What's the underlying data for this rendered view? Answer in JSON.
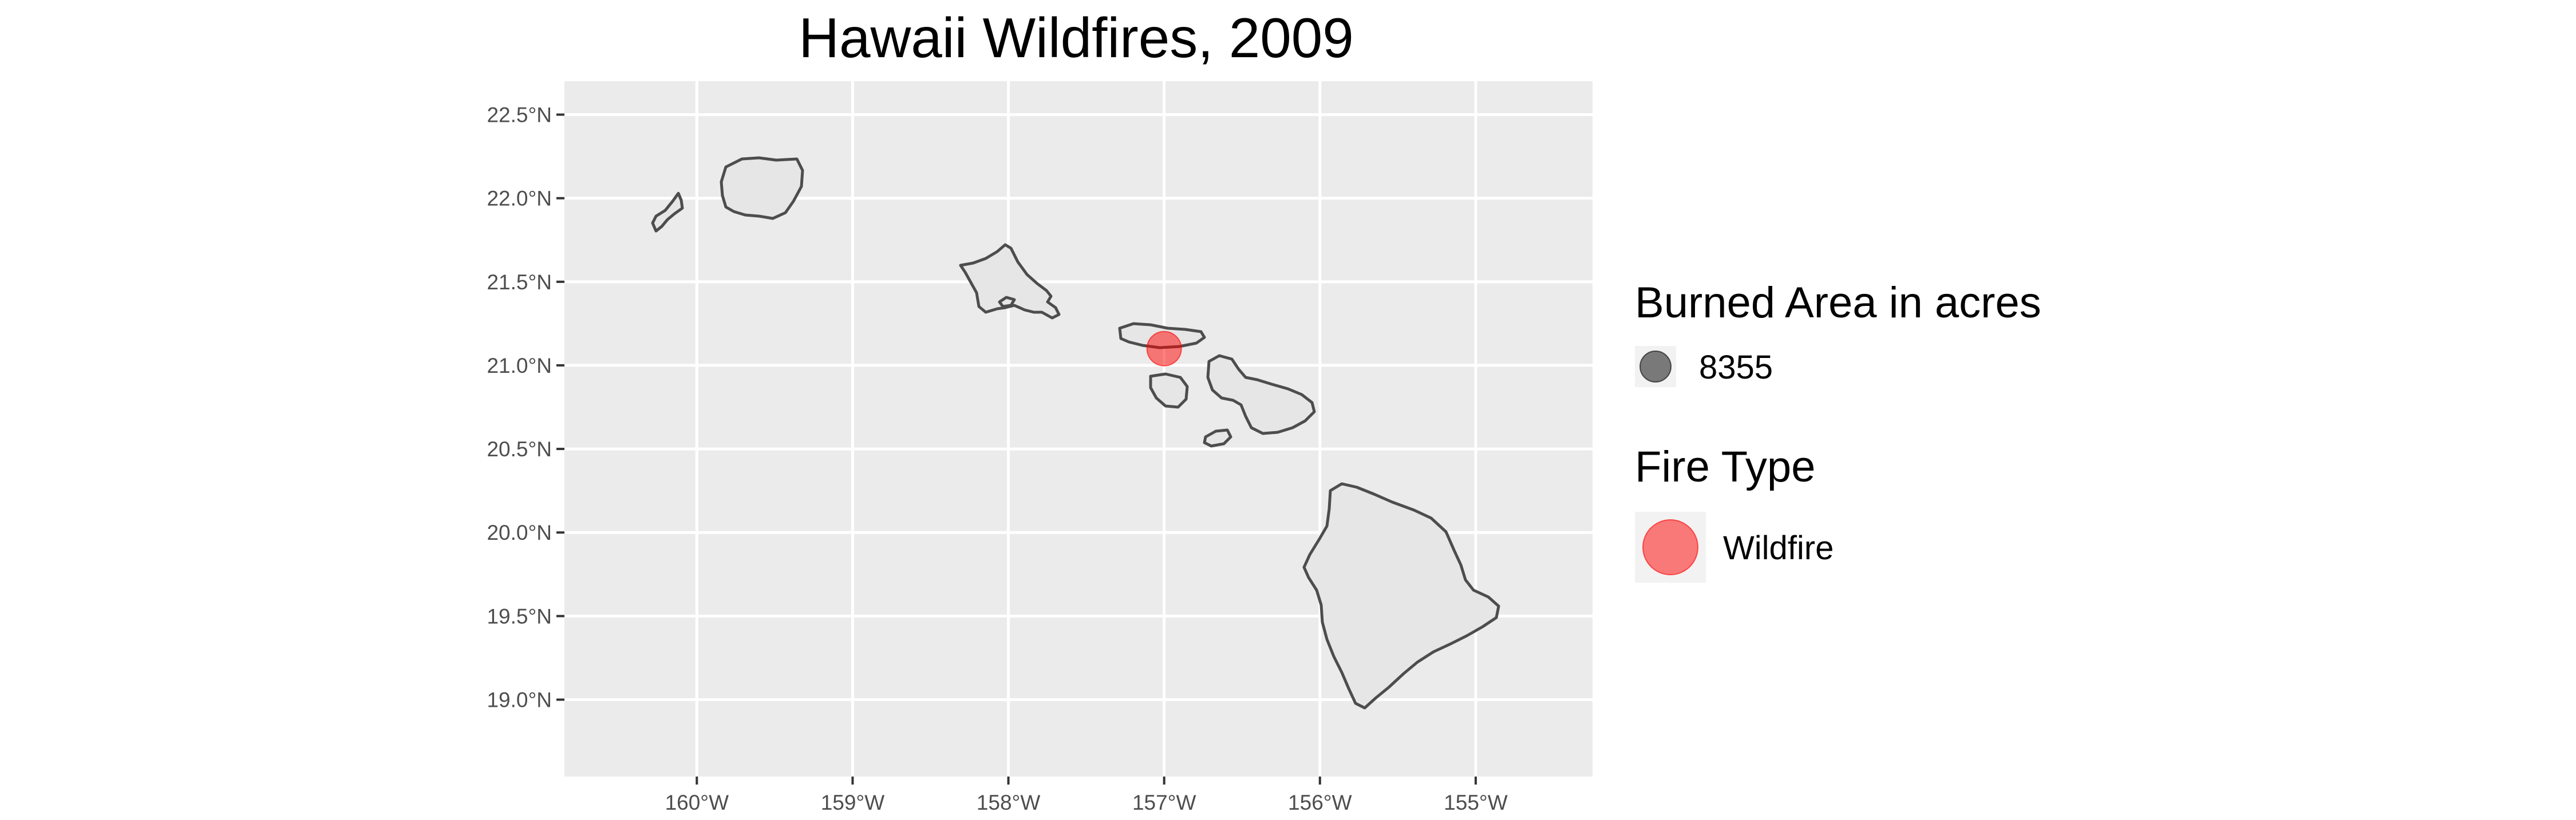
{
  "title": "Hawaii Wildfires, 2009",
  "map": {
    "panel_color": "#ebebeb",
    "land_color": "#e6e6e6",
    "outline_color": "#4d4d4d",
    "lon_ticks": [
      {
        "value": -160,
        "label": "160°W"
      },
      {
        "value": -159,
        "label": "159°W"
      },
      {
        "value": -158,
        "label": "158°W"
      },
      {
        "value": -157,
        "label": "157°W"
      },
      {
        "value": -156,
        "label": "156°W"
      },
      {
        "value": -155,
        "label": "155°W"
      }
    ],
    "lat_ticks": [
      {
        "value": 22.5,
        "label": "22.5°N"
      },
      {
        "value": 22.0,
        "label": "22.0°N"
      },
      {
        "value": 21.5,
        "label": "21.5°N"
      },
      {
        "value": 21.0,
        "label": "21.0°N"
      },
      {
        "value": 20.5,
        "label": "20.5°N"
      },
      {
        "value": 20.0,
        "label": "20.0°N"
      },
      {
        "value": 19.5,
        "label": "19.5°N"
      },
      {
        "value": 19.0,
        "label": "19.0°N"
      }
    ],
    "lon_range": [
      -160.85,
      -154.25
    ],
    "lat_range": [
      18.54,
      22.7
    ],
    "fires": [
      {
        "lon": -157.0,
        "lat": 21.1,
        "acres": 8355,
        "type": "Wildfire"
      }
    ],
    "fire_color": "#ff0000"
  },
  "legend": {
    "size_title": "Burned Area in acres",
    "size_items": [
      {
        "label": "8355",
        "color": "#000000"
      }
    ],
    "type_title": "Fire Type",
    "type_items": [
      {
        "label": "Wildfire",
        "color": "#ff0000"
      }
    ]
  }
}
